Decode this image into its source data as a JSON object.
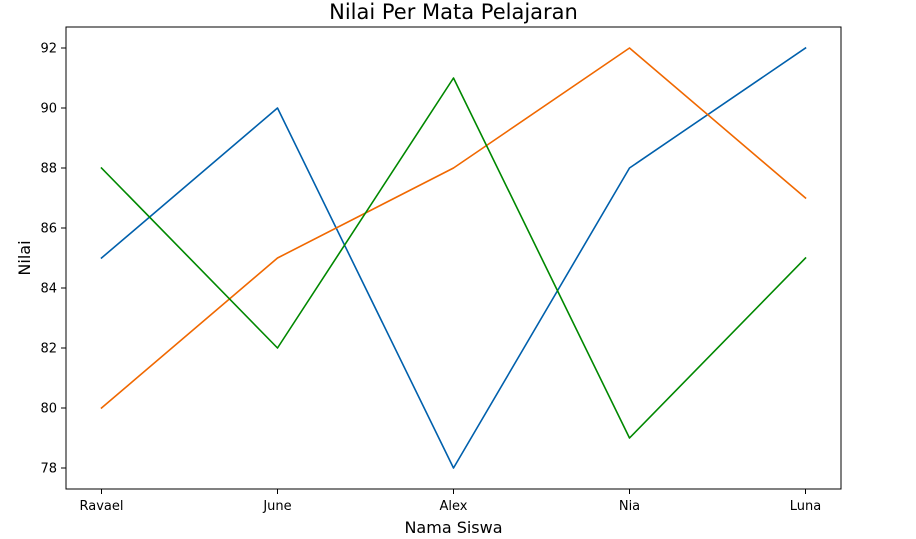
{
  "chart_data": {
    "type": "line",
    "title": "Nilai Per Mata Pelajaran",
    "xlabel": "Nama Siswa",
    "ylabel": "Nilai",
    "categories": [
      "Ravael",
      "June",
      "Alex",
      "Nia",
      "Luna"
    ],
    "ylim": [
      77.3,
      92.7
    ],
    "yticks": [
      78,
      80,
      82,
      84,
      86,
      88,
      90,
      92
    ],
    "grid": false,
    "legend": "none",
    "series": [
      {
        "color": "#0060ac",
        "values": [
          85,
          90,
          78,
          88,
          92
        ]
      },
      {
        "color": "#f06800",
        "values": [
          80,
          85,
          88,
          92,
          87
        ]
      },
      {
        "color": "#008800",
        "values": [
          88,
          82,
          91,
          79,
          85
        ]
      }
    ]
  }
}
